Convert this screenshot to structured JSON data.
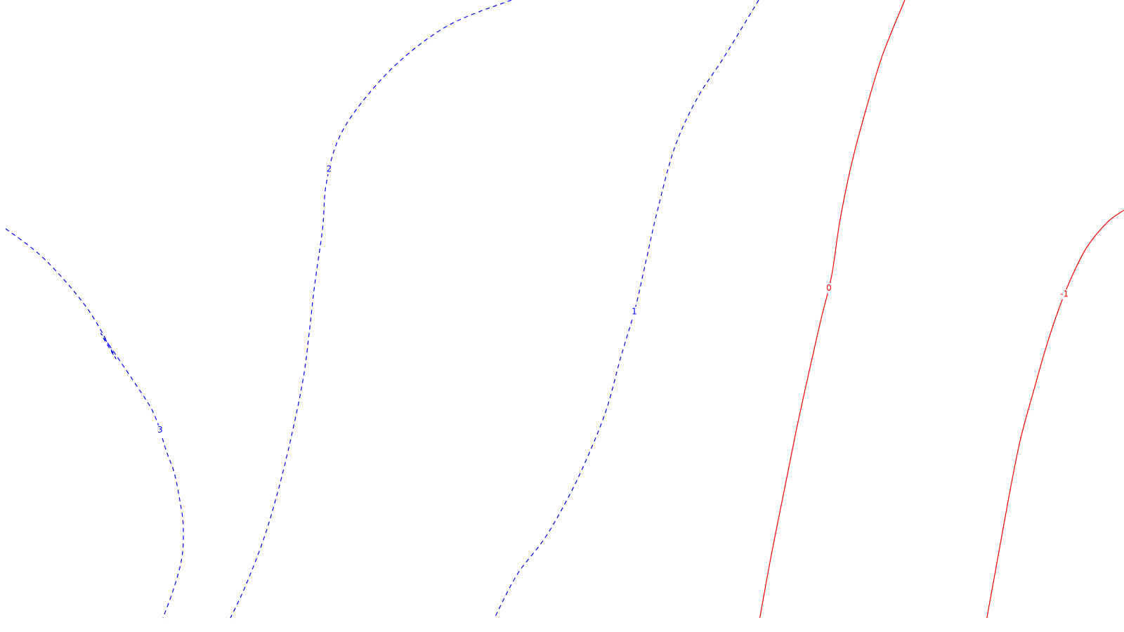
{
  "chart_data": {
    "type": "contour",
    "title": "",
    "xlabel": "",
    "ylabel": "",
    "grid": false,
    "levels": [
      {
        "level": 3,
        "label": "3",
        "color": "#0000ff",
        "dashed": true,
        "path": [
          [
            0.005,
            0.37
          ],
          [
            0.04,
            0.42
          ],
          [
            0.078,
            0.5
          ],
          [
            0.103,
            0.58
          ],
          [
            0.09,
            0.54
          ],
          [
            0.12,
            0.62
          ],
          [
            0.137,
            0.67
          ],
          [
            0.148,
            0.73
          ],
          [
            0.155,
            0.765
          ],
          [
            0.16,
            0.81
          ],
          [
            0.163,
            0.85
          ],
          [
            0.162,
            0.9
          ],
          [
            0.155,
            0.95
          ],
          [
            0.145,
            1.0
          ]
        ]
      },
      {
        "level": 2,
        "label": "2",
        "color": "#0000ff",
        "dashed": true,
        "path": [
          [
            0.455,
            0.0
          ],
          [
            0.4,
            0.04
          ],
          [
            0.355,
            0.1
          ],
          [
            0.32,
            0.17
          ],
          [
            0.3,
            0.23
          ],
          [
            0.29,
            0.3
          ],
          [
            0.287,
            0.37
          ],
          [
            0.28,
            0.46
          ],
          [
            0.275,
            0.54
          ],
          [
            0.27,
            0.61
          ],
          [
            0.26,
            0.7
          ],
          [
            0.248,
            0.79
          ],
          [
            0.235,
            0.87
          ],
          [
            0.218,
            0.95
          ],
          [
            0.205,
            1.0
          ]
        ]
      },
      {
        "level": 1,
        "label": "1",
        "color": "#0000ff",
        "dashed": true,
        "path": [
          [
            0.675,
            0.0
          ],
          [
            0.645,
            0.09
          ],
          [
            0.62,
            0.16
          ],
          [
            0.6,
            0.24
          ],
          [
            0.585,
            0.34
          ],
          [
            0.575,
            0.42
          ],
          [
            0.565,
            0.5
          ],
          [
            0.552,
            0.58
          ],
          [
            0.54,
            0.66
          ],
          [
            0.525,
            0.73
          ],
          [
            0.507,
            0.8
          ],
          [
            0.485,
            0.87
          ],
          [
            0.46,
            0.93
          ],
          [
            0.44,
            1.0
          ]
        ]
      },
      {
        "level": 0,
        "label": "0",
        "color": "#ff0000",
        "dashed": false,
        "path": [
          [
            0.805,
            0.0
          ],
          [
            0.785,
            0.09
          ],
          [
            0.77,
            0.18
          ],
          [
            0.757,
            0.27
          ],
          [
            0.747,
            0.36
          ],
          [
            0.74,
            0.445
          ],
          [
            0.73,
            0.52
          ],
          [
            0.72,
            0.6
          ],
          [
            0.708,
            0.7
          ],
          [
            0.697,
            0.8
          ],
          [
            0.686,
            0.9
          ],
          [
            0.676,
            1.0
          ]
        ]
      },
      {
        "level": -1,
        "label": "-1",
        "color": "#ff0000",
        "dashed": false,
        "path": [
          [
            1.0,
            0.34
          ],
          [
            0.985,
            0.36
          ],
          [
            0.967,
            0.4
          ],
          [
            0.953,
            0.45
          ],
          [
            0.942,
            0.5
          ],
          [
            0.931,
            0.56
          ],
          [
            0.92,
            0.63
          ],
          [
            0.908,
            0.71
          ],
          [
            0.898,
            0.8
          ],
          [
            0.888,
            0.9
          ],
          [
            0.878,
            1.0
          ]
        ]
      }
    ]
  }
}
